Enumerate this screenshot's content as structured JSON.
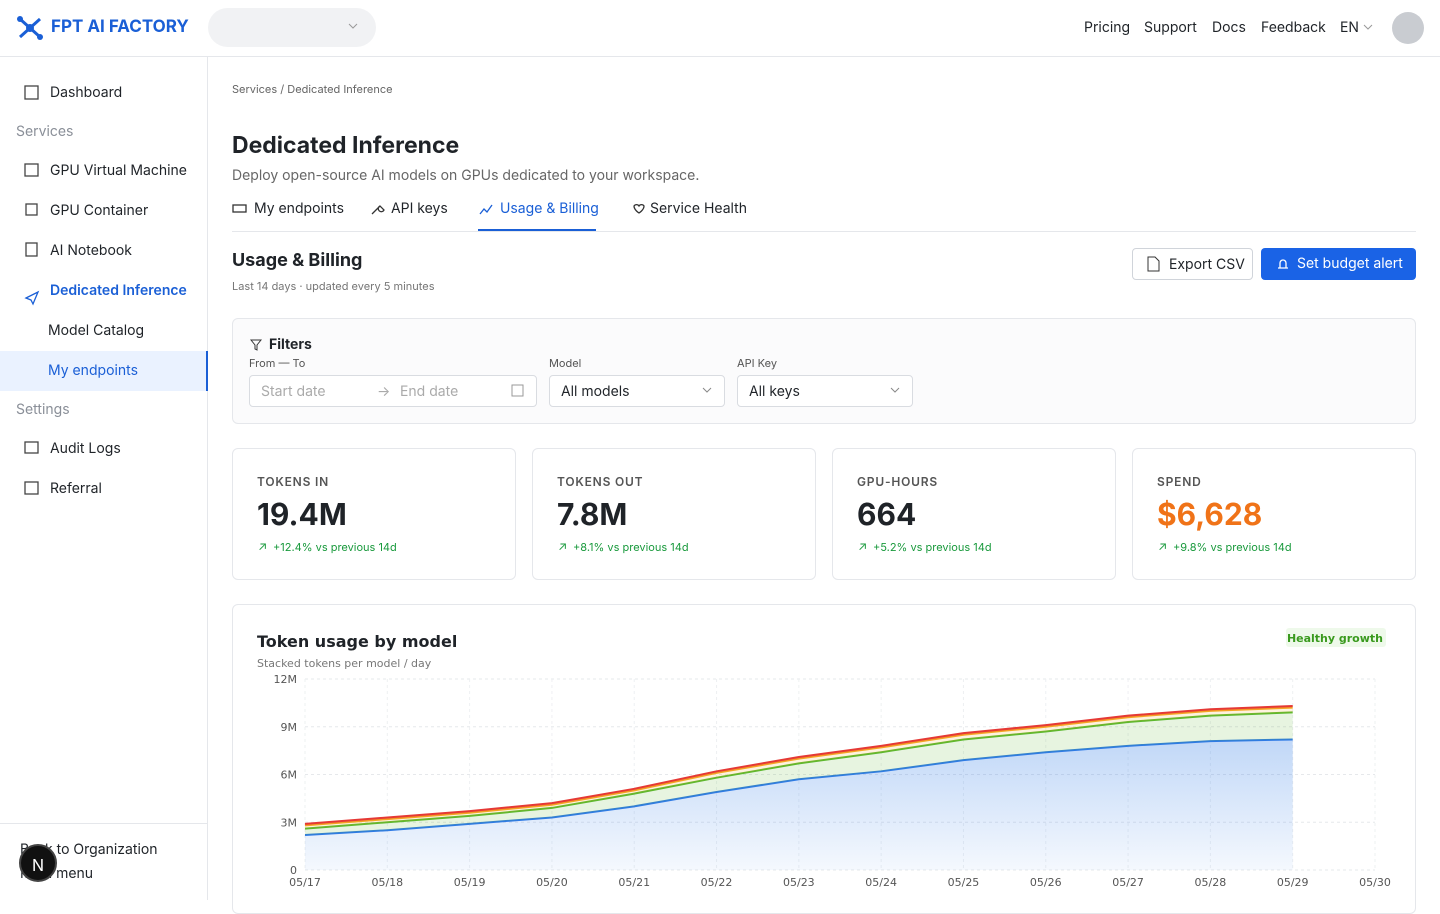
{
  "header": {
    "brand": "FPT AI FACTORY",
    "nav": [
      "Pricing",
      "Support",
      "Docs",
      "Feedback"
    ],
    "language": "EN"
  },
  "sidebar": {
    "top": "Dashboard",
    "sections": [
      {
        "title": "Services",
        "items": [
          "GPU Virtual Machine",
          "GPU Container",
          "AI Notebook",
          "Dedicated Inference",
          "Model Catalog",
          "My endpoints"
        ]
      },
      {
        "title": "Settings",
        "items": [
          "Audit Logs",
          "Referral"
        ]
      }
    ],
    "footer": [
      "Back to Organization",
      "Main menu"
    ],
    "dev_badge": "N"
  },
  "breadcrumb": [
    "Services",
    "Dedicated Inference"
  ],
  "page": {
    "title": "Dedicated Inference",
    "subtitle": "Deploy open-source AI models on GPUs dedicated to your workspace.",
    "tabs": [
      "My endpoints",
      "API keys",
      "Usage & Billing",
      "Service Health"
    ]
  },
  "section": {
    "title": "Usage & Billing",
    "subtitle": "Last 14 days · updated every 5 minutes",
    "buttons": [
      "Export CSV",
      "Set budget alert"
    ]
  },
  "filters": {
    "title": "Filters",
    "fields": [
      {
        "label": "From — To",
        "start": "Start date",
        "end": "End date"
      },
      {
        "label": "Model",
        "value": "All models"
      },
      {
        "label": "API Key",
        "value": "All keys"
      }
    ]
  },
  "kpis": [
    {
      "label": "TOKENS IN",
      "value": "19.4M",
      "delta": "+12.4% vs previous 14d"
    },
    {
      "label": "TOKENS OUT",
      "value": "7.8M",
      "delta": "+8.1% vs previous 14d"
    },
    {
      "label": "GPU-HOURS",
      "value": "664",
      "delta": "+5.2% vs previous 14d"
    },
    {
      "label": "SPEND",
      "value": "$6,628",
      "delta": "+9.8% vs previous 14d"
    }
  ],
  "chart_data": {
    "type": "area",
    "stacked": true,
    "title": "Token usage by model",
    "subtitle": "Stacked tokens per model / day",
    "badge": "Healthy growth",
    "categories": [
      "05/17",
      "05/18",
      "05/19",
      "05/20",
      "05/21",
      "05/22",
      "05/23",
      "05/24",
      "05/25",
      "05/26",
      "05/27",
      "05/28",
      "05/29",
      "05/30"
    ],
    "ylim": [
      0,
      12
    ],
    "yticks": [
      0,
      {
        "value": 3,
        "label": "3M"
      },
      {
        "value": 6,
        "label": "6M"
      },
      {
        "value": 9,
        "label": "9M"
      },
      {
        "value": 12,
        "label": "12M"
      }
    ],
    "grid": true,
    "series": [
      {
        "color": "#2f7be6",
        "values": [
          2.2,
          2.5,
          2.9,
          3.3,
          4.0,
          4.9,
          5.7,
          6.2,
          6.9,
          7.4,
          7.8,
          8.1,
          8.2,
          null
        ]
      },
      {
        "color": "#5cb82e",
        "values": [
          0.4,
          0.5,
          0.5,
          0.6,
          0.8,
          0.9,
          1.0,
          1.2,
          1.3,
          1.3,
          1.5,
          1.6,
          1.7,
          null
        ]
      },
      {
        "color": "#f5a623",
        "values": [
          0.2,
          0.2,
          0.2,
          0.2,
          0.2,
          0.3,
          0.3,
          0.3,
          0.3,
          0.3,
          0.3,
          0.3,
          0.3,
          null
        ]
      },
      {
        "color": "#e53935",
        "values": [
          0.1,
          0.1,
          0.1,
          0.1,
          0.1,
          0.1,
          0.1,
          0.1,
          0.1,
          0.1,
          0.1,
          0.1,
          0.1,
          null
        ]
      }
    ]
  }
}
